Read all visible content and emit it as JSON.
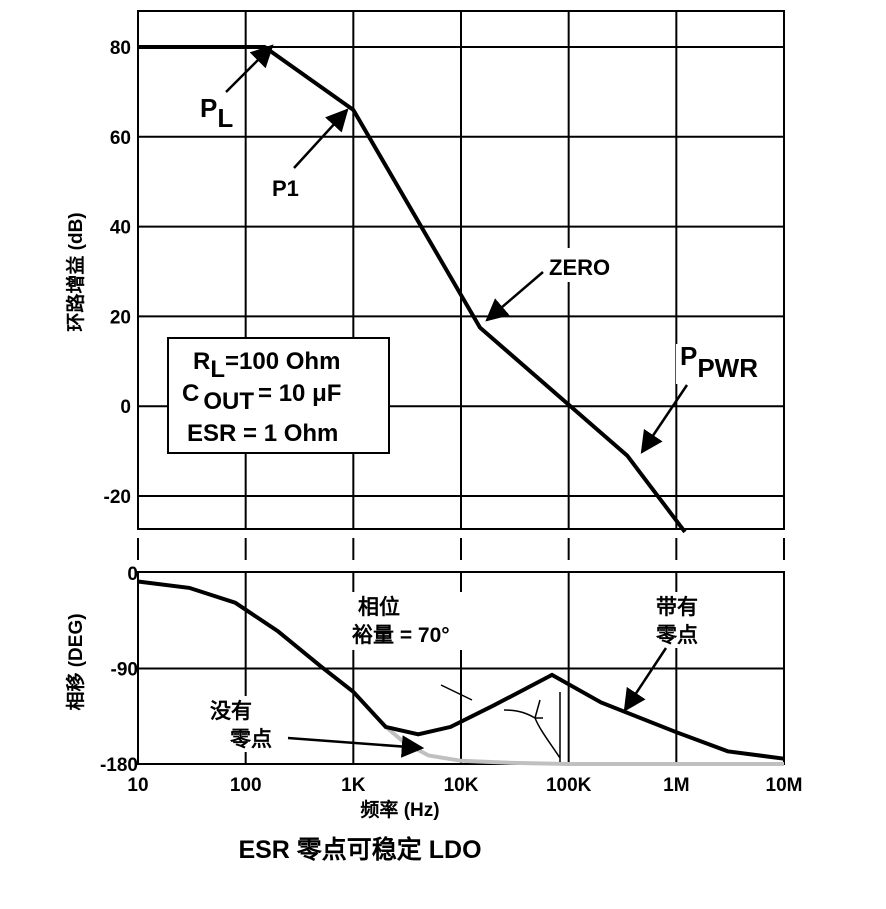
{
  "chart_data": [
    {
      "type": "line",
      "ylabel": "环路增益 (dB)",
      "x_scale": "log",
      "xlim": [
        10,
        10000000
      ],
      "ylim": [
        -28,
        88
      ],
      "y_ticks": [
        "80",
        "60",
        "40",
        "20",
        "0",
        "-20"
      ],
      "series": [
        {
          "x": [
            10,
            150,
            1000,
            15000,
            350000,
            1200000
          ],
          "y": [
            80,
            80,
            66,
            17.5,
            -11,
            -28
          ]
        }
      ],
      "annotations": {
        "pl": {
          "main": "P",
          "sub": "L"
        },
        "p1": "P1",
        "zero": "ZERO",
        "ppwr": {
          "main": "P",
          "sub": "PWR"
        }
      },
      "params": {
        "rl": {
          "main": "R",
          "sub": "L",
          "rest": "=100 Ohm"
        },
        "cout": {
          "main": "C",
          "sub": "OUT",
          "rest": "= 10 μF"
        },
        "esr": "ESR = 1 Ohm"
      },
      "grid": true
    },
    {
      "type": "line",
      "xlabel": "频率 (Hz)",
      "ylabel": "相移 (DEG)",
      "x_scale": "log",
      "xlim": [
        10,
        10000000
      ],
      "ylim": [
        -180,
        0
      ],
      "x_ticks": [
        "10",
        "100",
        "1K",
        "10K",
        "100K",
        "1M",
        "10M"
      ],
      "y_ticks": [
        "0",
        "-90",
        "-180"
      ],
      "series": [
        {
          "name": "带有零点",
          "x": [
            10,
            30,
            80,
            200,
            500,
            1000,
            2000,
            4000,
            8000,
            20000,
            70000,
            200000,
            1000000,
            3000000,
            10000000
          ],
          "y": [
            -8,
            -14,
            -28,
            -55,
            -88,
            -112,
            -145,
            -152,
            -145,
            -125,
            -96,
            -122,
            -150,
            -168,
            -175
          ]
        },
        {
          "name": "没有零点",
          "x": [
            2000,
            3000,
            5000,
            10000,
            30000,
            100000,
            1000000,
            10000000
          ],
          "y": [
            -145,
            -160,
            -172,
            -177,
            -179,
            -180,
            -180,
            -180
          ]
        }
      ],
      "annotations": {
        "margin_line1": "相位",
        "margin_line2": "裕量 = 70°",
        "with_zero_line1": "带有",
        "with_zero_line2": "零点",
        "no_zero_line1": "没有",
        "no_zero_line2": "零点"
      },
      "colors": {
        "with_zero": "#000000",
        "no_zero": "#c0c0c0"
      },
      "grid": true
    }
  ],
  "caption": "ESR 零点可稳定 LDO"
}
